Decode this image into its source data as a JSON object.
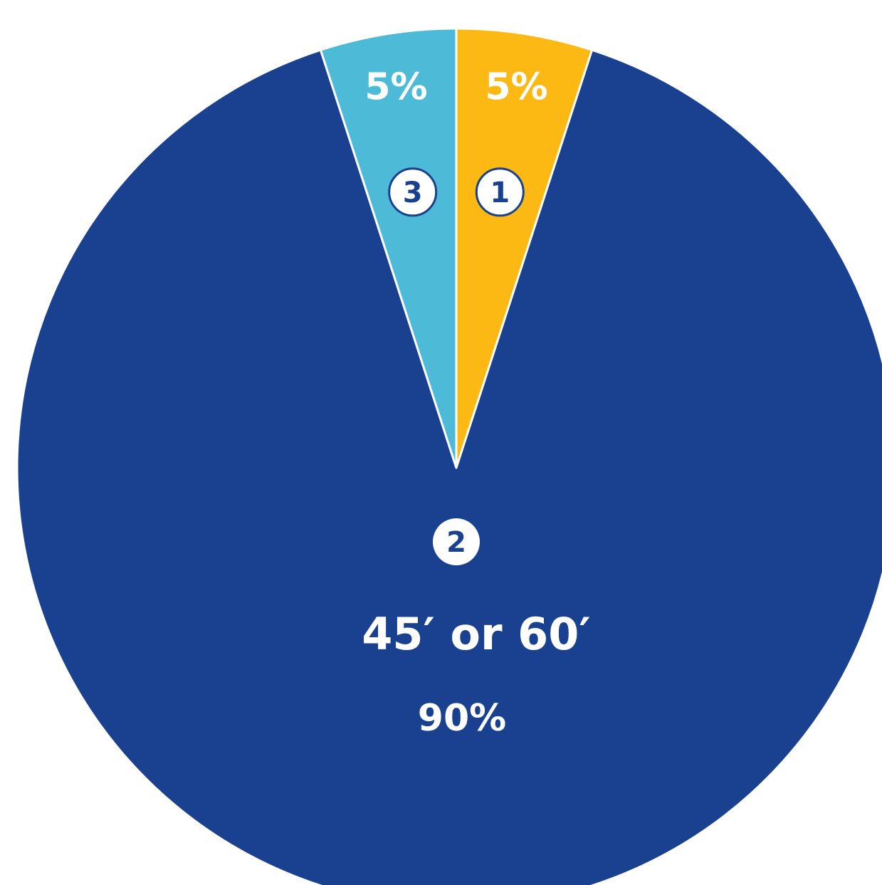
{
  "chart_data": {
    "type": "pie",
    "slices": [
      {
        "marker": "1",
        "label": "",
        "value": 5,
        "value_label": "5%",
        "color": "#FDB913"
      },
      {
        "marker": "2",
        "label": "45′ or 60′",
        "value": 90,
        "value_label": "90%",
        "color": "#1A4190"
      },
      {
        "marker": "3",
        "label": "",
        "value": 5,
        "value_label": "5%",
        "color": "#4DBBD8"
      }
    ],
    "start_angle_deg": 0,
    "direction": "clockwise",
    "legend": "none"
  }
}
